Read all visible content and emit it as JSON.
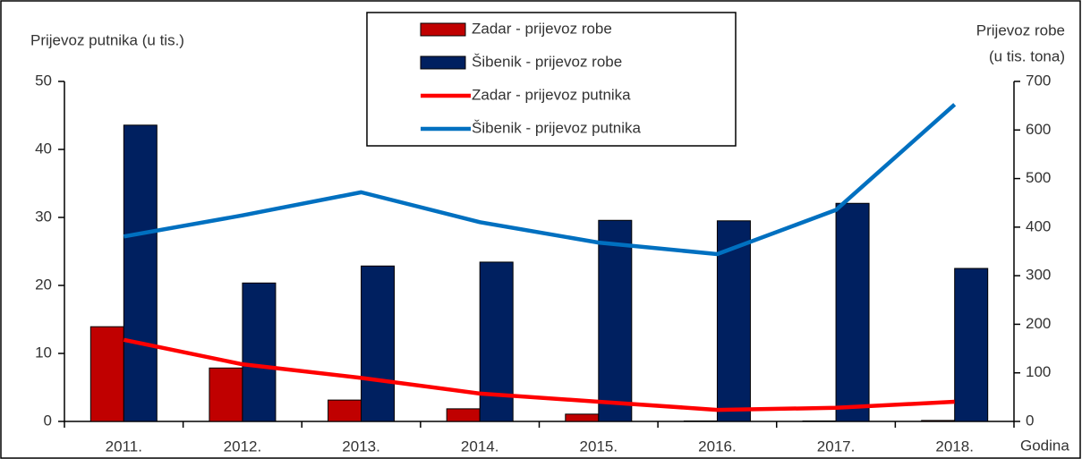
{
  "chart_data": {
    "type": "combo",
    "y_label": "Prijevoz putnika (u tis.)",
    "y2_label": [
      "Prijevoz robe",
      "(u tis. tona)"
    ],
    "x_label": "Godina",
    "categories": [
      "2011.",
      "2012.",
      "2013.",
      "2014.",
      "2015.",
      "2016.",
      "2017.",
      "2018."
    ],
    "ylim": [
      0,
      50
    ],
    "yticks": [
      0,
      10,
      20,
      30,
      40,
      50
    ],
    "y2lim": [
      0,
      700
    ],
    "y2ticks": [
      0,
      100,
      200,
      300,
      400,
      500,
      600,
      700
    ],
    "grid": false,
    "series": [
      {
        "name": "Zadar - prijevoz robe",
        "type": "bar",
        "axis": "y2",
        "color": "#c00000",
        "values": [
          195,
          110,
          44,
          26,
          15,
          1,
          1,
          2
        ]
      },
      {
        "name": "Šibenik - prijevoz robe",
        "type": "bar",
        "axis": "y2",
        "color": "#002060",
        "values": [
          610,
          285,
          320,
          328,
          414,
          413,
          449,
          315
        ]
      },
      {
        "name": "Zadar - prijevoz putnika",
        "type": "line",
        "axis": "y",
        "color": "#ff0000",
        "values": [
          12.0,
          8.4,
          6.4,
          4.1,
          2.9,
          1.7,
          2.0,
          2.9
        ]
      },
      {
        "name": "Šibenik - prijevoz putnika",
        "type": "line",
        "axis": "y",
        "color": "#0070c0",
        "values": [
          27.2,
          30.3,
          33.7,
          29.3,
          26.3,
          24.6,
          31.1,
          46.6
        ]
      }
    ]
  }
}
